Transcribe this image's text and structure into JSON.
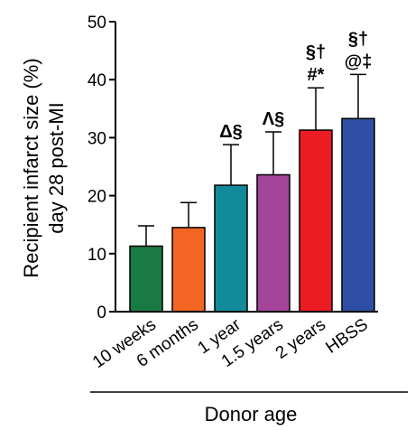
{
  "chart_data": {
    "type": "bar",
    "xlabel": "Donor age",
    "ylabel_lines": [
      "Recipient infarct size (%)",
      "day 28 post-MI"
    ],
    "ylim": [
      0,
      50
    ],
    "yticks": [
      0,
      10,
      20,
      30,
      40,
      50
    ],
    "grid": false,
    "categories": [
      "10 weeks",
      "6 months",
      "1 year",
      "1.5 years",
      "2 years",
      "HBSS"
    ],
    "values": [
      11.3,
      14.5,
      21.8,
      23.6,
      31.3,
      33.3
    ],
    "errors": [
      3.5,
      4.3,
      7.0,
      7.4,
      7.3,
      7.6
    ],
    "colors": [
      "#1a7a43",
      "#f26522",
      "#138a9b",
      "#a4449a",
      "#ec1c24",
      "#2e4fa3"
    ],
    "annotations": [
      [],
      [],
      [
        "Δ§"
      ],
      [
        "Λ§"
      ],
      [
        "§†",
        "#*"
      ],
      [
        "§†",
        "@‡"
      ]
    ]
  }
}
